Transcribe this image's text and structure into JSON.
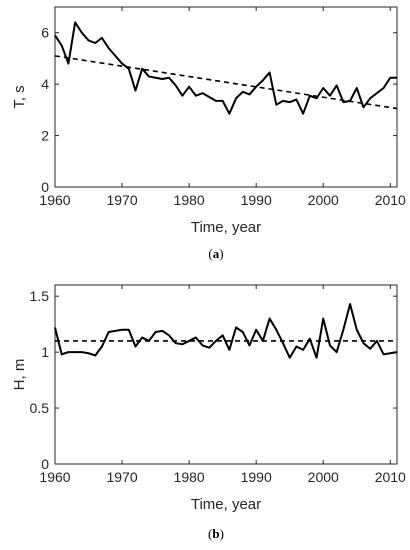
{
  "chart_data": [
    {
      "type": "line",
      "caption_open": "(",
      "caption_letter": "a",
      "caption_close": ")",
      "xlabel": "Time, year",
      "ylabel": "T, s",
      "xlim": [
        1960,
        2011
      ],
      "ylim": [
        0,
        7
      ],
      "xticks": [
        "1960",
        "1970",
        "1980",
        "1990",
        "2000",
        "2010"
      ],
      "yticks": [
        "0",
        "2",
        "4",
        "6"
      ],
      "grid": false,
      "series": [
        {
          "style": "solid",
          "x": [
            1960,
            1961,
            1962,
            1963,
            1964,
            1965,
            1966,
            1967,
            1968,
            1969,
            1970,
            1971,
            1972,
            1973,
            1974,
            1975,
            1976,
            1977,
            1978,
            1979,
            1980,
            1981,
            1982,
            1983,
            1984,
            1985,
            1986,
            1987,
            1988,
            1989,
            1990,
            1991,
            1992,
            1993,
            1994,
            1995,
            1996,
            1997,
            1998,
            1999,
            2000,
            2001,
            2002,
            2003,
            2004,
            2005,
            2006,
            2007,
            2008,
            2009,
            2010,
            2011
          ],
          "y": [
            5.9,
            5.5,
            4.8,
            6.4,
            6.0,
            5.7,
            5.6,
            5.8,
            5.4,
            5.1,
            4.8,
            4.6,
            3.75,
            4.6,
            4.3,
            4.25,
            4.2,
            4.25,
            3.95,
            3.55,
            3.9,
            3.55,
            3.65,
            3.5,
            3.35,
            3.35,
            2.85,
            3.45,
            3.7,
            3.6,
            3.9,
            4.15,
            4.45,
            3.2,
            3.35,
            3.3,
            3.4,
            2.85,
            3.55,
            3.45,
            3.85,
            3.55,
            3.95,
            3.3,
            3.35,
            3.85,
            3.1,
            3.45,
            3.65,
            3.85,
            4.25,
            4.25
          ]
        },
        {
          "style": "dashed",
          "x": [
            1960,
            2011
          ],
          "y": [
            5.1,
            3.05
          ]
        }
      ]
    },
    {
      "type": "line",
      "caption_open": "(",
      "caption_letter": "b",
      "caption_close": ")",
      "xlabel": "Time, year",
      "ylabel": "H, m",
      "xlim": [
        1960,
        2011
      ],
      "ylim": [
        0,
        1.6
      ],
      "xticks": [
        "1960",
        "1970",
        "1980",
        "1990",
        "2000",
        "2010"
      ],
      "yticks": [
        "0",
        "0.5",
        "1",
        "1.5"
      ],
      "grid": false,
      "series": [
        {
          "style": "solid",
          "x": [
            1960,
            1961,
            1962,
            1963,
            1964,
            1965,
            1966,
            1967,
            1968,
            1969,
            1970,
            1971,
            1972,
            1973,
            1974,
            1975,
            1976,
            1977,
            1978,
            1979,
            1980,
            1981,
            1982,
            1983,
            1984,
            1985,
            1986,
            1987,
            1988,
            1989,
            1990,
            1991,
            1992,
            1993,
            1994,
            1995,
            1996,
            1997,
            1998,
            1999,
            2000,
            2001,
            2002,
            2003,
            2004,
            2005,
            2006,
            2007,
            2008,
            2009,
            2010,
            2011
          ],
          "y": [
            1.22,
            0.98,
            1.0,
            1.0,
            1.0,
            0.99,
            0.97,
            1.05,
            1.18,
            1.19,
            1.2,
            1.2,
            1.05,
            1.13,
            1.1,
            1.18,
            1.19,
            1.15,
            1.08,
            1.07,
            1.1,
            1.13,
            1.06,
            1.04,
            1.1,
            1.15,
            1.02,
            1.22,
            1.18,
            1.06,
            1.2,
            1.1,
            1.3,
            1.2,
            1.08,
            0.95,
            1.05,
            1.02,
            1.12,
            0.95,
            1.3,
            1.06,
            1.0,
            1.2,
            1.43,
            1.2,
            1.08,
            1.03,
            1.1,
            0.98,
            0.99,
            1.0
          ]
        },
        {
          "style": "dashed",
          "x": [
            1960,
            2011
          ],
          "y": [
            1.1,
            1.1
          ]
        }
      ]
    }
  ]
}
